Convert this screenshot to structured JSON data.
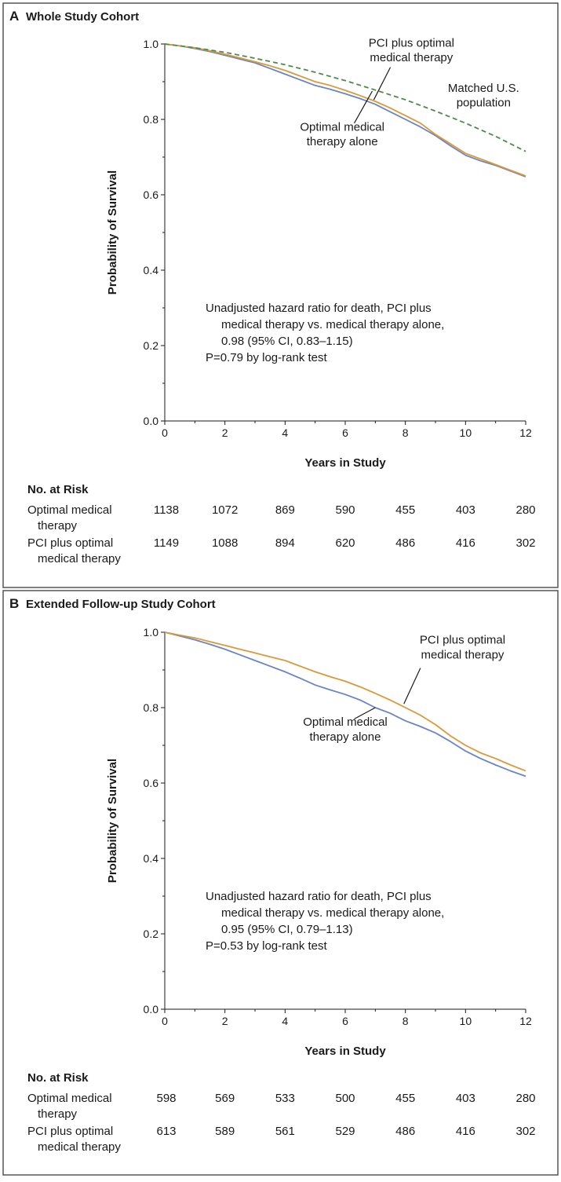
{
  "chart_data": [
    {
      "type": "line",
      "panel_letter": "A",
      "title": "Whole Study Cohort",
      "xlabel": "Years in Study",
      "ylabel": "Probability of Survival",
      "xlim": [
        0,
        12
      ],
      "ylim": [
        0,
        1
      ],
      "x_ticks": [
        0,
        2,
        4,
        6,
        8,
        10,
        12
      ],
      "y_ticks": [
        "0.0",
        "0.2",
        "0.4",
        "0.6",
        "0.8",
        "1.0"
      ],
      "grid": false,
      "series": [
        {
          "key": "omt",
          "color": "#6b84c4",
          "dash": "",
          "points": [
            [
              0,
              1.0
            ],
            [
              0.5,
              0.995
            ],
            [
              1,
              0.988
            ],
            [
              1.5,
              0.98
            ],
            [
              2,
              0.97
            ],
            [
              2.5,
              0.96
            ],
            [
              3,
              0.95
            ],
            [
              3.5,
              0.935
            ],
            [
              4,
              0.92
            ],
            [
              4.5,
              0.905
            ],
            [
              5,
              0.89
            ],
            [
              5.5,
              0.88
            ],
            [
              6,
              0.868
            ],
            [
              6.5,
              0.855
            ],
            [
              7,
              0.84
            ],
            [
              7.5,
              0.82
            ],
            [
              8,
              0.8
            ],
            [
              8.5,
              0.78
            ],
            [
              9,
              0.757
            ],
            [
              9.5,
              0.73
            ],
            [
              10,
              0.705
            ],
            [
              10.5,
              0.69
            ],
            [
              11,
              0.678
            ],
            [
              11.5,
              0.663
            ],
            [
              12,
              0.648
            ]
          ]
        },
        {
          "key": "pci",
          "color": "#d89a3a",
          "dash": "",
          "points": [
            [
              0,
              1.0
            ],
            [
              0.5,
              0.995
            ],
            [
              1,
              0.99
            ],
            [
              1.5,
              0.982
            ],
            [
              2,
              0.973
            ],
            [
              2.5,
              0.963
            ],
            [
              3,
              0.953
            ],
            [
              3.5,
              0.942
            ],
            [
              4,
              0.93
            ],
            [
              4.5,
              0.915
            ],
            [
              5,
              0.9
            ],
            [
              5.5,
              0.89
            ],
            [
              6,
              0.877
            ],
            [
              6.5,
              0.863
            ],
            [
              7,
              0.848
            ],
            [
              7.5,
              0.83
            ],
            [
              8,
              0.81
            ],
            [
              8.5,
              0.79
            ],
            [
              9,
              0.76
            ],
            [
              9.5,
              0.735
            ],
            [
              10,
              0.71
            ],
            [
              10.5,
              0.695
            ],
            [
              11,
              0.68
            ],
            [
              11.5,
              0.665
            ],
            [
              12,
              0.65
            ]
          ]
        },
        {
          "key": "us",
          "color": "#4f8a4a",
          "dash": "6,4",
          "points": [
            [
              0,
              1.0
            ],
            [
              1,
              0.99
            ],
            [
              2,
              0.978
            ],
            [
              3,
              0.962
            ],
            [
              4,
              0.945
            ],
            [
              5,
              0.925
            ],
            [
              6,
              0.903
            ],
            [
              7,
              0.878
            ],
            [
              8,
              0.852
            ],
            [
              9,
              0.822
            ],
            [
              10,
              0.79
            ],
            [
              11,
              0.755
            ],
            [
              12,
              0.715
            ]
          ]
        }
      ],
      "labels": [
        {
          "text": "PCI plus optimal",
          "x": 8.2,
          "y": 0.993
        },
        {
          "text": "medical therapy",
          "x": 8.2,
          "y": 0.954
        },
        {
          "text": "Matched U.S.",
          "x": 10.6,
          "y": 0.873
        },
        {
          "text": "population",
          "x": 10.6,
          "y": 0.834
        },
        {
          "text": "Optimal medical",
          "x": 5.9,
          "y": 0.77
        },
        {
          "text": "therapy alone",
          "x": 5.9,
          "y": 0.731
        }
      ],
      "leaders": [
        {
          "x1": 6.9,
          "y1": 0.875,
          "x2": 6.3,
          "y2": 0.79
        },
        {
          "x1": 7.5,
          "y1": 0.938,
          "x2": 6.95,
          "y2": 0.852
        }
      ],
      "annotation": [
        "Unadjusted hazard ratio for death, PCI plus",
        "medical therapy vs. medical therapy alone,",
        "0.98 (95% CI, 0.83–1.15)",
        "P=0.79 by log-rank test"
      ],
      "risk_title": "No. at Risk",
      "risk_rows": [
        {
          "label": [
            "Optimal medical",
            "therapy"
          ],
          "values": [
            "1138",
            "1072",
            "869",
            "590",
            "455",
            "403",
            "280"
          ]
        },
        {
          "label": [
            "PCI plus optimal",
            "medical therapy"
          ],
          "values": [
            "1149",
            "1088",
            "894",
            "620",
            "486",
            "416",
            "302"
          ]
        }
      ]
    },
    {
      "type": "line",
      "panel_letter": "B",
      "title": "Extended Follow-up Study Cohort",
      "xlabel": "Years in Study",
      "ylabel": "Probability of Survival",
      "xlim": [
        0,
        12
      ],
      "ylim": [
        0,
        1
      ],
      "x_ticks": [
        0,
        2,
        4,
        6,
        8,
        10,
        12
      ],
      "y_ticks": [
        "0.0",
        "0.2",
        "0.4",
        "0.6",
        "0.8",
        "1.0"
      ],
      "grid": false,
      "series": [
        {
          "key": "omt",
          "color": "#6b84c4",
          "dash": "",
          "points": [
            [
              0,
              1.0
            ],
            [
              0.5,
              0.99
            ],
            [
              1,
              0.98
            ],
            [
              1.5,
              0.968
            ],
            [
              2,
              0.955
            ],
            [
              2.5,
              0.94
            ],
            [
              3,
              0.925
            ],
            [
              3.5,
              0.91
            ],
            [
              4,
              0.895
            ],
            [
              4.5,
              0.878
            ],
            [
              5,
              0.86
            ],
            [
              5.5,
              0.847
            ],
            [
              6,
              0.835
            ],
            [
              6.5,
              0.82
            ],
            [
              7,
              0.8
            ],
            [
              7.5,
              0.785
            ],
            [
              8,
              0.765
            ],
            [
              8.5,
              0.75
            ],
            [
              9,
              0.733
            ],
            [
              9.5,
              0.71
            ],
            [
              10,
              0.685
            ],
            [
              10.5,
              0.665
            ],
            [
              11,
              0.648
            ],
            [
              11.5,
              0.632
            ],
            [
              12,
              0.618
            ]
          ]
        },
        {
          "key": "pci",
          "color": "#d89a3a",
          "dash": "",
          "points": [
            [
              0,
              1.0
            ],
            [
              0.5,
              0.992
            ],
            [
              1,
              0.985
            ],
            [
              1.5,
              0.975
            ],
            [
              2,
              0.965
            ],
            [
              2.5,
              0.955
            ],
            [
              3,
              0.945
            ],
            [
              3.5,
              0.935
            ],
            [
              4,
              0.925
            ],
            [
              4.5,
              0.91
            ],
            [
              5,
              0.895
            ],
            [
              5.5,
              0.882
            ],
            [
              6,
              0.87
            ],
            [
              6.5,
              0.855
            ],
            [
              7,
              0.838
            ],
            [
              7.5,
              0.82
            ],
            [
              8,
              0.8
            ],
            [
              8.5,
              0.78
            ],
            [
              9,
              0.755
            ],
            [
              9.5,
              0.725
            ],
            [
              10,
              0.7
            ],
            [
              10.5,
              0.68
            ],
            [
              11,
              0.665
            ],
            [
              11.5,
              0.648
            ],
            [
              12,
              0.632
            ]
          ]
        }
      ],
      "labels": [
        {
          "text": "PCI plus optimal",
          "x": 9.9,
          "y": 0.97
        },
        {
          "text": "medical therapy",
          "x": 9.9,
          "y": 0.93
        },
        {
          "text": "Optimal medical",
          "x": 6.0,
          "y": 0.752
        },
        {
          "text": "therapy alone",
          "x": 6.0,
          "y": 0.713
        }
      ],
      "leaders": [
        {
          "x1": 7.0,
          "y1": 0.8,
          "x2": 6.3,
          "y2": 0.77
        },
        {
          "x1": 8.5,
          "y1": 0.905,
          "x2": 7.95,
          "y2": 0.81
        }
      ],
      "annotation": [
        "Unadjusted hazard ratio for death, PCI plus",
        "medical therapy vs. medical therapy alone,",
        "0.95 (95% CI, 0.79–1.13)",
        "P=0.53 by log-rank test"
      ],
      "risk_title": "No. at Risk",
      "risk_rows": [
        {
          "label": [
            "Optimal medical",
            "therapy"
          ],
          "values": [
            "598",
            "569",
            "533",
            "500",
            "455",
            "403",
            "280"
          ]
        },
        {
          "label": [
            "PCI plus optimal",
            "medical therapy"
          ],
          "values": [
            "613",
            "589",
            "561",
            "529",
            "486",
            "416",
            "302"
          ]
        }
      ]
    }
  ]
}
